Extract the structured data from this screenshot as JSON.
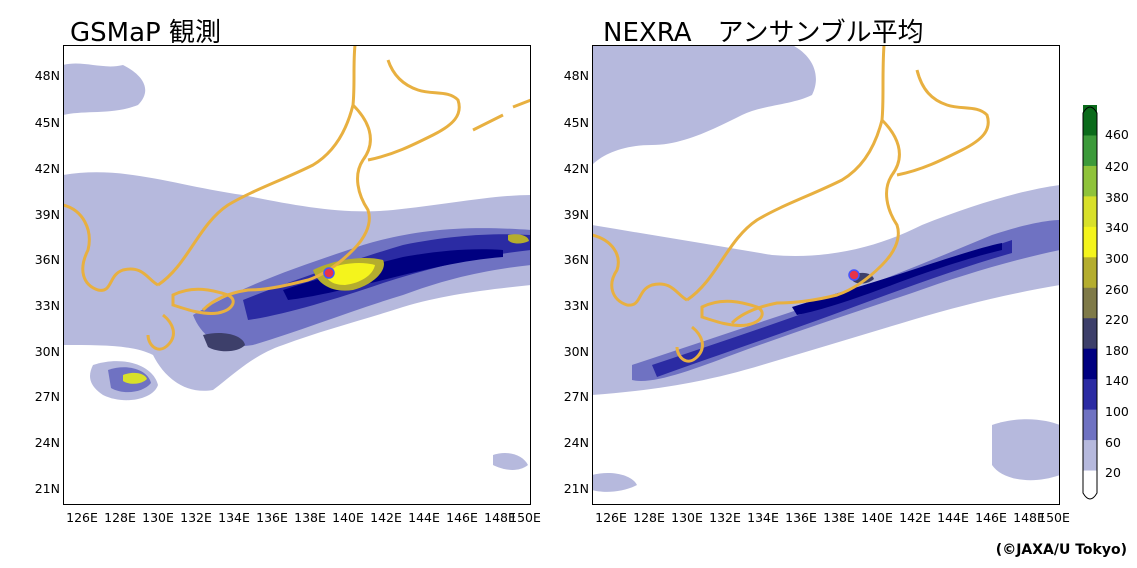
{
  "panels": [
    {
      "title": "GSMaP 観測"
    },
    {
      "title": "NEXRA　アンサンブル平均"
    }
  ],
  "lat_ticks": [
    "48N",
    "45N",
    "42N",
    "39N",
    "36N",
    "33N",
    "30N",
    "27N",
    "24N",
    "21N"
  ],
  "lon_ticks": [
    "126E",
    "128E",
    "130E",
    "132E",
    "134E",
    "136E",
    "138E",
    "140E",
    "142E",
    "144E",
    "146E",
    "148E",
    "150E"
  ],
  "colorbar": {
    "levels": [
      "460",
      "420",
      "380",
      "340",
      "300",
      "260",
      "220",
      "180",
      "140",
      "100",
      "60",
      "20"
    ],
    "colors": [
      "#0b6b1b",
      "#3c9a3a",
      "#8fc33a",
      "#d8e02a",
      "#f4f41c",
      "#b4ad2e",
      "#7f7a48",
      "#3d3f6a",
      "#000080",
      "#2b2ba3",
      "#6f72c2",
      "#b6b9dd",
      "#ffffff"
    ]
  },
  "credit": "(©JAXA/U Tokyo)",
  "colors": {
    "coast": "#e8b040",
    "marker": "#e8334a",
    "marker_edge": "#4455ff"
  }
}
